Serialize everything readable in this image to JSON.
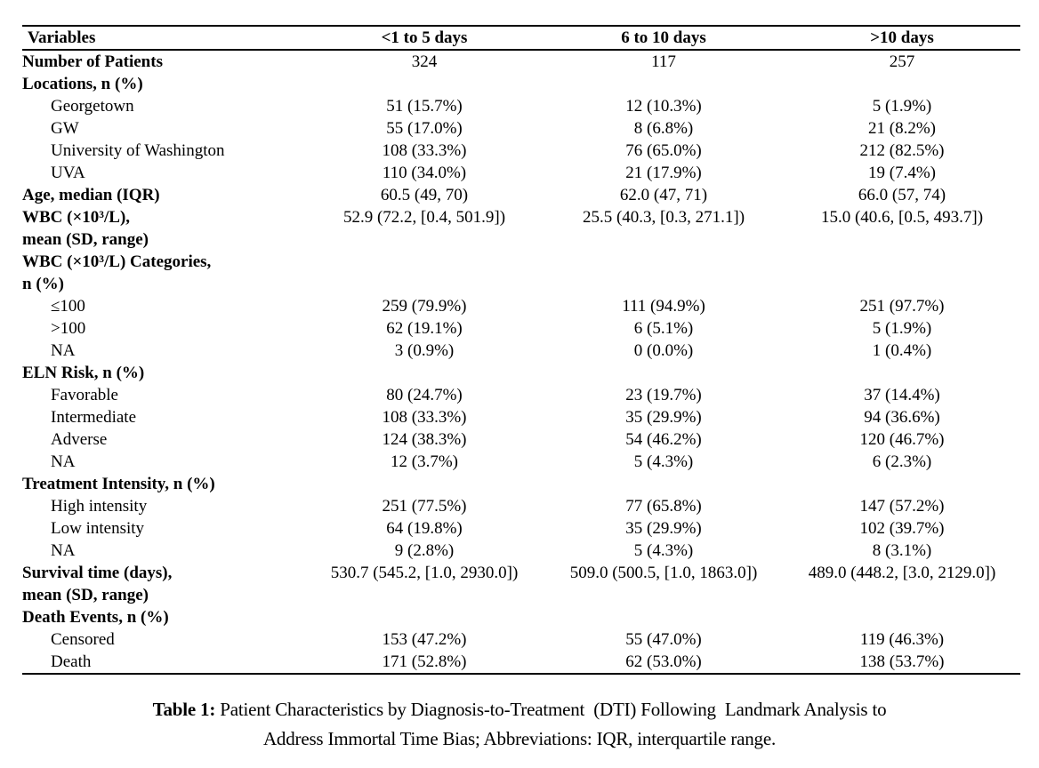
{
  "table": {
    "columns": [
      "Variables",
      "<1 to 5 days",
      "6 to 10 days",
      ">10 days"
    ],
    "rows": [
      {
        "lines": [
          "Number of Patients"
        ],
        "bold": true,
        "indent": false,
        "values": [
          "324",
          "117",
          "257"
        ]
      },
      {
        "lines": [
          "Locations, n (%)"
        ],
        "bold": true,
        "indent": false,
        "values": [
          "",
          "",
          ""
        ]
      },
      {
        "lines": [
          "Georgetown"
        ],
        "bold": false,
        "indent": true,
        "values": [
          "51 (15.7%)",
          "12 (10.3%)",
          "5 (1.9%)"
        ]
      },
      {
        "lines": [
          "GW"
        ],
        "bold": false,
        "indent": true,
        "values": [
          "55 (17.0%)",
          "8 (6.8%)",
          "21 (8.2%)"
        ]
      },
      {
        "lines": [
          "University of Washington"
        ],
        "bold": false,
        "indent": true,
        "values": [
          "108 (33.3%)",
          "76 (65.0%)",
          "212 (82.5%)"
        ]
      },
      {
        "lines": [
          "UVA"
        ],
        "bold": false,
        "indent": true,
        "values": [
          "110 (34.0%)",
          "21 (17.9%)",
          "19 (7.4%)"
        ]
      },
      {
        "lines": [
          "Age, median (IQR)"
        ],
        "bold": true,
        "indent": false,
        "values": [
          "60.5 (49, 70)",
          "62.0 (47, 71)",
          "66.0 (57, 74)"
        ]
      },
      {
        "lines": [
          "WBC (×10³/L),",
          "mean (SD, range)"
        ],
        "bold": true,
        "indent": false,
        "values": [
          "52.9 (72.2, [0.4, 501.9])",
          "25.5 (40.3, [0.3, 271.1])",
          "15.0 (40.6, [0.5, 493.7])"
        ]
      },
      {
        "lines": [
          "WBC (×10³/L) Categories,",
          "n (%)"
        ],
        "bold": true,
        "indent": false,
        "values": [
          "",
          "",
          ""
        ]
      },
      {
        "lines": [
          "≤100"
        ],
        "bold": false,
        "indent": true,
        "values": [
          "259 (79.9%)",
          "111 (94.9%)",
          "251 (97.7%)"
        ]
      },
      {
        "lines": [
          ">100"
        ],
        "bold": false,
        "indent": true,
        "values": [
          "62 (19.1%)",
          "6 (5.1%)",
          "5 (1.9%)"
        ]
      },
      {
        "lines": [
          "NA"
        ],
        "bold": false,
        "indent": true,
        "values": [
          "3 (0.9%)",
          "0 (0.0%)",
          "1 (0.4%)"
        ]
      },
      {
        "lines": [
          "ELN Risk, n (%)"
        ],
        "bold": true,
        "indent": false,
        "values": [
          "",
          "",
          ""
        ]
      },
      {
        "lines": [
          "Favorable"
        ],
        "bold": false,
        "indent": true,
        "values": [
          "80 (24.7%)",
          "23 (19.7%)",
          "37 (14.4%)"
        ]
      },
      {
        "lines": [
          "Intermediate"
        ],
        "bold": false,
        "indent": true,
        "values": [
          "108 (33.3%)",
          "35 (29.9%)",
          "94 (36.6%)"
        ]
      },
      {
        "lines": [
          "Adverse"
        ],
        "bold": false,
        "indent": true,
        "values": [
          "124 (38.3%)",
          "54 (46.2%)",
          "120 (46.7%)"
        ]
      },
      {
        "lines": [
          "NA"
        ],
        "bold": false,
        "indent": true,
        "values": [
          "12 (3.7%)",
          "5 (4.3%)",
          "6 (2.3%)"
        ]
      },
      {
        "lines": [
          "Treatment Intensity, n (%)"
        ],
        "bold": true,
        "indent": false,
        "values": [
          "",
          "",
          ""
        ]
      },
      {
        "lines": [
          "High intensity"
        ],
        "bold": false,
        "indent": true,
        "values": [
          "251 (77.5%)",
          "77 (65.8%)",
          "147 (57.2%)"
        ]
      },
      {
        "lines": [
          "Low intensity"
        ],
        "bold": false,
        "indent": true,
        "values": [
          "64 (19.8%)",
          "35 (29.9%)",
          "102 (39.7%)"
        ]
      },
      {
        "lines": [
          "NA"
        ],
        "bold": false,
        "indent": true,
        "values": [
          "9 (2.8%)",
          "5 (4.3%)",
          "8 (3.1%)"
        ]
      },
      {
        "lines": [
          "Survival time (days),",
          "mean (SD, range)"
        ],
        "bold": true,
        "indent": false,
        "values": [
          "530.7 (545.2, [1.0, 2930.0])",
          "509.0 (500.5, [1.0, 1863.0])",
          "489.0 (448.2, [3.0, 2129.0])"
        ]
      },
      {
        "lines": [
          "Death Events, n (%)"
        ],
        "bold": true,
        "indent": false,
        "values": [
          "",
          "",
          ""
        ]
      },
      {
        "lines": [
          "Censored"
        ],
        "bold": false,
        "indent": true,
        "values": [
          "153 (47.2%)",
          "55 (47.0%)",
          "119 (46.3%)"
        ]
      },
      {
        "lines": [
          "Death"
        ],
        "bold": false,
        "indent": true,
        "values": [
          "171 (52.8%)",
          "62 (53.0%)",
          "138 (53.7%)"
        ]
      }
    ]
  },
  "caption": {
    "label": "Table 1:",
    "lines": [
      "Patient Characteristics by Diagnosis-to-Treatment  (DTI) Following  Landmark Analysis to",
      "Address Immortal Time Bias; Abbreviations: IQR, interquartile range."
    ]
  }
}
